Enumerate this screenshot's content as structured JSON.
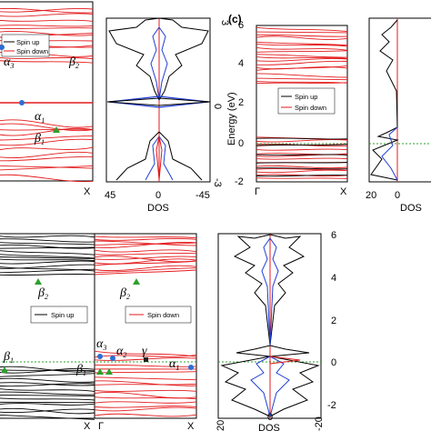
{
  "panel_c_label": "(c)",
  "panel_a_right_axis_ticks": [
    "3",
    "0",
    "-3"
  ],
  "panel_a_dos_ticks": [
    "45",
    "0",
    "-45"
  ],
  "panel_a_dos_xlabel": "DOS",
  "panel_a_band_tick": "X",
  "panel_a_legend": [
    "Spin up",
    "Spin down"
  ],
  "panel_a_greek": {
    "a3": "α",
    "a3_sub": "3",
    "b2": "β",
    "b2_sub": "2",
    "a1": "α",
    "a1_sub": "1",
    "b1": "β",
    "b1_sub": "1"
  },
  "panel_c_ylabel": "Energy (eV)",
  "panel_c_yticks": [
    "6",
    "4",
    "2",
    "0",
    "-2"
  ],
  "panel_c_xticks": [
    "Γ",
    "X"
  ],
  "panel_c_legend": [
    "Spin up",
    "Spin down"
  ],
  "panel_c_dos_ticks": [
    "20",
    "0"
  ],
  "panel_c_dos_xlabel": "DOS",
  "panel_b_legend_up": "Spin up",
  "panel_b_legend_down": "Spin down",
  "panel_b_xticks": [
    "X",
    "Γ",
    "X"
  ],
  "panel_b_greek": {
    "b2l": "β",
    "b2l_sub": "2",
    "b2r": "β",
    "b2r_sub": "2",
    "b1l": "β",
    "b1l_sub": "1",
    "b1r": "β",
    "b1r_sub": "1",
    "a3": "α",
    "a3_sub": "3",
    "a2": "α",
    "a2_sub": "2",
    "g": "γ",
    "a1": "α",
    "a1_sub": "1"
  },
  "panel_b_dos_ticks": [
    "20",
    "0",
    "-20"
  ],
  "panel_b_dos_xlabel": "DOS",
  "panel_b_yticks": [
    "6",
    "4",
    "2",
    "0",
    "-2"
  ],
  "colors": {
    "spin_up": "#000000",
    "spin_down": "#e41a1c",
    "dos_blue": "#1f3fd6",
    "fermi": "#2ca02c",
    "marker_blue": "#2a6fd6",
    "marker_green": "#2ca02c"
  }
}
